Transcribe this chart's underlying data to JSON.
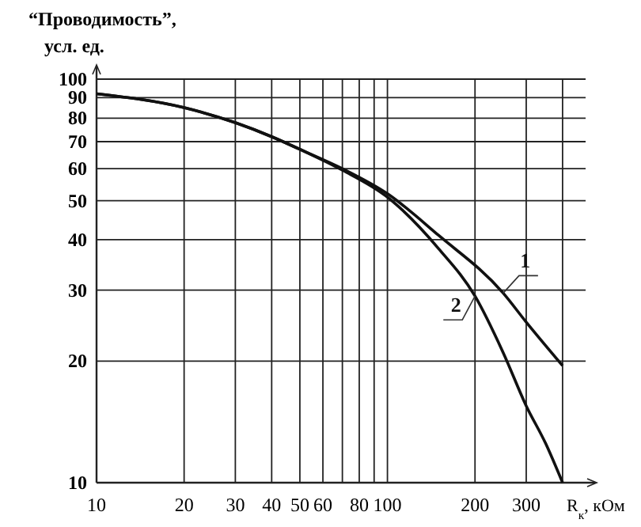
{
  "chart_data": {
    "type": "line",
    "ylabel": "“Проводимость”,\nусл. ед.",
    "xlabel": "R$_{к}$, кОм",
    "log": "xy",
    "grid": true,
    "marker": "none",
    "line_style": "solid",
    "xlim": [
      10,
      480
    ],
    "ylim": [
      10,
      100
    ],
    "xticks": [
      10,
      20,
      30,
      40,
      50,
      60,
      {
        "value": 70,
        "label": null
      },
      80,
      {
        "value": 90,
        "label": null
      },
      100,
      200,
      300,
      {
        "value": 400,
        "label": null
      }
    ],
    "yticks": [
      10,
      20,
      30,
      40,
      50,
      60,
      70,
      80,
      90,
      100
    ],
    "series": [
      {
        "name": "1",
        "color": "#111111",
        "x": [
          10,
          20,
          30,
          40,
          50,
          70,
          100,
          150,
          250,
          300,
          400
        ],
        "values": [
          92,
          85,
          78,
          72,
          67,
          60,
          52,
          41,
          29.5,
          25,
          19.5
        ]
      },
      {
        "name": "2",
        "color": "#111111",
        "x": [
          10,
          20,
          30,
          40,
          50,
          70,
          100,
          150,
          200,
          250,
          300,
          350,
          400
        ],
        "values": [
          92,
          85,
          78,
          72,
          67,
          59.5,
          51,
          38,
          29,
          21,
          15.5,
          12.5,
          10
        ]
      }
    ]
  }
}
